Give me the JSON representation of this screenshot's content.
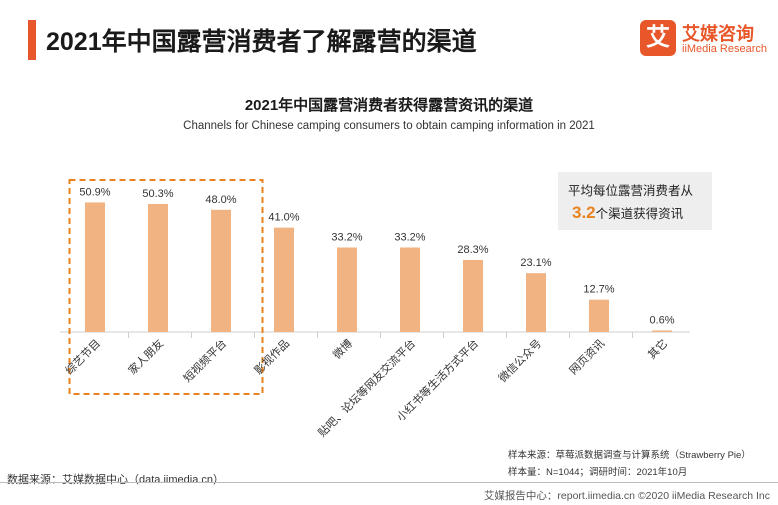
{
  "header": {
    "title": "2021年中国露营消费者了解露营的渠道",
    "logo_mark": "艾",
    "logo_cn": "艾媒咨询",
    "logo_en": "iiMedia Research"
  },
  "callout": {
    "line1": "平均每位露营消费者从",
    "number": "3.2",
    "line2_suffix": "个渠道获得资讯"
  },
  "notes": {
    "sample_source": "样本来源：草莓派数据调查与计算系统（Strawberry Pie）",
    "sample_size": "样本量：N=1044；调研时间：2021年10月",
    "data_source": "数据来源：艾媒数据中心（data.iimedia.cn）",
    "footer": "艾媒报告中心：report.iimedia.cn   ©2020  iiMedia Research  Inc"
  },
  "colors": {
    "accent": "#e8572a",
    "bar": "#f2b383",
    "highlight_border": "#e8821e"
  },
  "chart_data": {
    "type": "bar",
    "title": "2021年中国露营消费者获得露营资讯的渠道",
    "subtitle": "Channels for Chinese camping consumers to obtain camping information in 2021",
    "categories": [
      "综艺节目",
      "家人朋友",
      "短视频平台",
      "影视作品",
      "微博",
      "贴吧、论坛等网友交流平台",
      "小红书等生活方式平台",
      "微信公众号",
      "网页资讯",
      "其它"
    ],
    "values": [
      50.9,
      50.3,
      48.0,
      41.0,
      33.2,
      33.2,
      28.3,
      23.1,
      12.7,
      0.6
    ],
    "value_labels": [
      "50.9%",
      "50.3%",
      "48.0%",
      "41.0%",
      "33.2%",
      "33.2%",
      "28.3%",
      "23.1%",
      "12.7%",
      "0.6%"
    ],
    "highlighted_categories": [
      "综艺节目",
      "家人朋友",
      "短视频平台"
    ],
    "xlabel": "",
    "ylabel": "",
    "ylim": [
      0,
      55
    ],
    "grid": false
  }
}
